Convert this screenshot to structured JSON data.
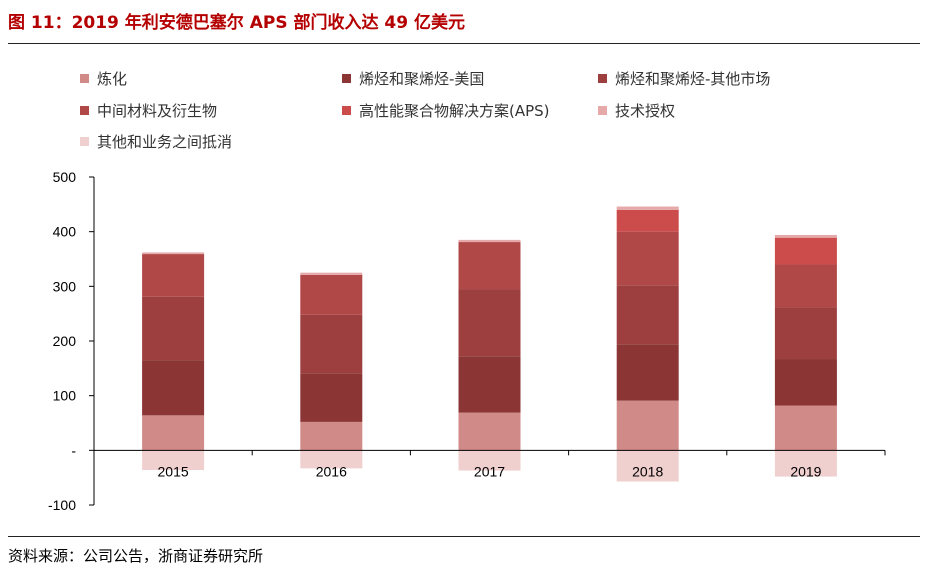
{
  "title": "图 11：2019 年利安德巴塞尔 APS 部门收入达 49 亿美元",
  "source": "资料来源：公司公告，浙商证券研究所",
  "chart_data": {
    "type": "bar",
    "stacked": true,
    "categories": [
      "2015",
      "2016",
      "2017",
      "2018",
      "2019"
    ],
    "y_ticks": [
      "500",
      "400",
      "300",
      "200",
      "100",
      "-",
      "-100"
    ],
    "ylim": [
      -100,
      500
    ],
    "series": [
      {
        "name": "炼化",
        "color": "#d08a88",
        "values": [
          64,
          52,
          69,
          91,
          82
        ]
      },
      {
        "name": "烯烃和聚烯烃-美国",
        "color": "#8b3535",
        "values": [
          101,
          89,
          103,
          103,
          85
        ]
      },
      {
        "name": "烯烃和聚烯烃-其他市场",
        "color": "#9e3f3f",
        "values": [
          116,
          107,
          123,
          108,
          95
        ]
      },
      {
        "name": "中间材料及衍生物",
        "color": "#b04848",
        "values": [
          78,
          73,
          86,
          98,
          78
        ]
      },
      {
        "name": "高性能聚合物解决方案(APS)",
        "color": "#cc4b4b",
        "values": [
          0,
          0,
          0,
          40,
          49
        ]
      },
      {
        "name": "技术授权",
        "color": "#e6a9aa",
        "values": [
          3,
          4,
          4,
          6,
          5
        ]
      },
      {
        "name": "其他和业务之间抵消",
        "color": "#f0cfcf",
        "values": [
          -36,
          -33,
          -37,
          -57,
          -48
        ]
      }
    ]
  }
}
